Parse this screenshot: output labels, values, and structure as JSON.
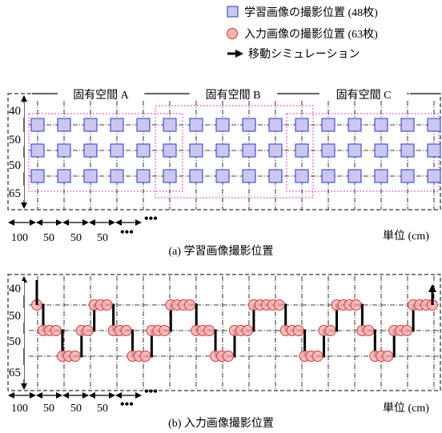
{
  "legend": {
    "learning": "学習画像の撮影位置 (48枚)",
    "input": "入力画像の撮影位置 (63枚)",
    "movement": "移動シミュレーション"
  },
  "panel_a": {
    "regions": [
      "固有空間 A",
      "固有空間 B",
      "固有空間 C"
    ],
    "row_labels": [
      "40",
      "50",
      "50",
      "65"
    ],
    "col_labels": [
      "100",
      "50",
      "50",
      "50"
    ],
    "ellipsis": "•••",
    "unit": "単位 (cm)",
    "caption": "(a) 学習画像撮影位置"
  },
  "panel_b": {
    "row_labels": [
      "40",
      "50",
      "50",
      "65"
    ],
    "col_labels": [
      "100",
      "50",
      "50",
      "50"
    ],
    "ellipsis": "•••",
    "unit": "単位 (cm)",
    "caption": "(b) 入力画像撮影位置"
  },
  "colors": {
    "square_fill": "#c8c8f0",
    "square_stroke": "#3333cc",
    "circle_fill": "#f5b5b5",
    "circle_stroke": "#d63a3a",
    "region_border": "#e040e0",
    "path": "#000000"
  },
  "learning_grid": {
    "columns": 16,
    "rows": 3
  },
  "input_path_levels": [
    0,
    1,
    1,
    1,
    2,
    2,
    2,
    1,
    1,
    0,
    0,
    0,
    1,
    1,
    1,
    2,
    2,
    2,
    1,
    1,
    1,
    0,
    0,
    0,
    0,
    1,
    1,
    1,
    2,
    2,
    2,
    1,
    1,
    1,
    0,
    0,
    0,
    0,
    0,
    1,
    1,
    1,
    2,
    2,
    2,
    1,
    1,
    0,
    0,
    0,
    0,
    1,
    1,
    2,
    2,
    2,
    1,
    1,
    1,
    0,
    0,
    0,
    0
  ]
}
